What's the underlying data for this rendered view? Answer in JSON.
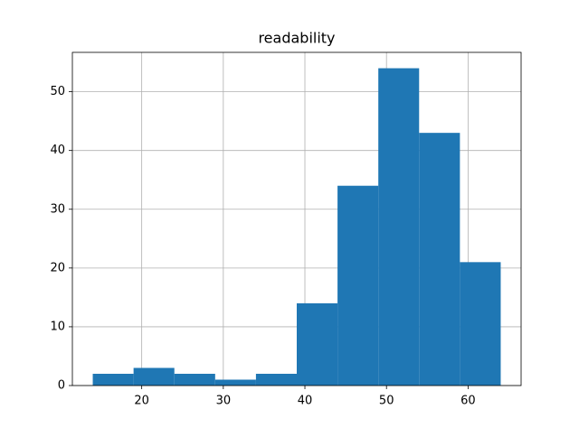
{
  "chart_data": {
    "type": "histogram",
    "title": "readability",
    "bins": [
      14,
      19,
      24,
      29,
      34,
      39,
      44,
      49,
      54,
      59,
      64
    ],
    "values": [
      2,
      3,
      2,
      1,
      2,
      14,
      34,
      54,
      43,
      21
    ],
    "color": "#1f77b4",
    "xlim": [
      11.5,
      66.5
    ],
    "xticks": [
      20,
      30,
      40,
      50,
      60
    ],
    "ylim": [
      0,
      56.7
    ],
    "yticks": [
      0,
      10,
      20,
      30,
      40,
      50
    ],
    "grid": true
  }
}
